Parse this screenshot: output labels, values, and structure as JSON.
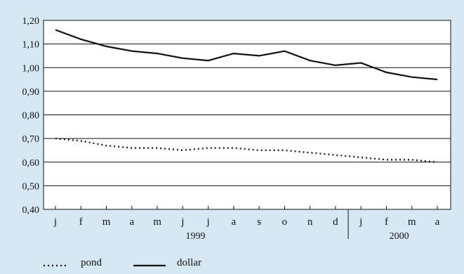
{
  "chart_data": {
    "type": "line",
    "categories": [
      "j",
      "f",
      "m",
      "a",
      "m",
      "j",
      "j",
      "a",
      "s",
      "o",
      "n",
      "d",
      "j",
      "f",
      "m",
      "a"
    ],
    "year_groups": [
      {
        "label": "1999",
        "start": 0,
        "end": 11
      },
      {
        "label": "2000",
        "start": 12,
        "end": 15
      }
    ],
    "ylim": [
      0.4,
      1.2
    ],
    "yticks": [
      "0,40",
      "0,50",
      "0,60",
      "0,70",
      "0,80",
      "0,90",
      "1,00",
      "1,10",
      "1,20"
    ],
    "ytick_values": [
      0.4,
      0.5,
      0.6,
      0.7,
      0.8,
      0.9,
      1.0,
      1.1,
      1.2
    ],
    "grid": true,
    "legend_position": "bottom-left",
    "series": [
      {
        "name": "pond",
        "style": "dotted",
        "values": [
          0.7,
          0.69,
          0.67,
          0.66,
          0.66,
          0.65,
          0.66,
          0.66,
          0.65,
          0.65,
          0.64,
          0.63,
          0.62,
          0.61,
          0.61,
          0.6
        ]
      },
      {
        "name": "dollar",
        "style": "solid",
        "values": [
          1.16,
          1.12,
          1.09,
          1.07,
          1.06,
          1.04,
          1.03,
          1.06,
          1.05,
          1.07,
          1.03,
          1.01,
          1.02,
          0.98,
          0.96,
          0.95
        ]
      }
    ],
    "title": "",
    "xlabel": "",
    "ylabel": ""
  },
  "colors": {
    "panel": "#d5e8f3",
    "line": "#111111"
  }
}
